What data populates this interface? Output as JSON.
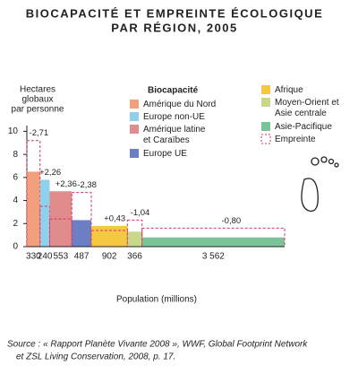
{
  "chart_data": {
    "type": "variable-width-bar",
    "title": [
      "BIOCAPACITÉ ET EMPREINTE ÉCOLOGIQUE",
      "PAR RÉGION, 2005"
    ],
    "y_label": [
      "Hectares",
      "globaux",
      "par personne"
    ],
    "x_label": "Population (millions)",
    "legend_title": "Biocapacité",
    "footprint_name": "Empreinte",
    "footprint_color": "#d6336c",
    "categories": [
      "Amérique du Nord",
      "Europe non-UE",
      "Amérique latine et Caraïbes",
      "Europe UE",
      "Afrique",
      "Moyen-Orient et Asie centrale",
      "Asie-Pacifique"
    ],
    "colors": [
      "#f2a07b",
      "#8fd0ec",
      "#e08c8c",
      "#6c7fc4",
      "#f5c842",
      "#c8d88a",
      "#7bc49a"
    ],
    "population": [
      330,
      240,
      553,
      487,
      902,
      366,
      3562
    ],
    "population_labels": [
      "330",
      "240",
      "553",
      "487",
      "902",
      "366",
      "3 562"
    ],
    "biocapacity": [
      6.5,
      5.8,
      4.8,
      2.3,
      1.8,
      1.3,
      0.8
    ],
    "footprint": [
      9.2,
      3.5,
      2.4,
      4.7,
      1.4,
      2.3,
      1.6
    ],
    "balance": [
      -2.71,
      2.26,
      2.36,
      -2.38,
      0.43,
      -1.04,
      -0.8
    ],
    "balance_labels": [
      "-2,71",
      "+2,26",
      "+2,36",
      "-2,38",
      "+0,43",
      "-1,04",
      "-0,80"
    ],
    "ylim": [
      0,
      10.5
    ],
    "yticks": [
      0,
      2,
      4,
      6,
      8,
      10
    ],
    "source": [
      "Source : « Rapport Planète Vivante 2008 », WWF, Global Footprint Network",
      "et ZSL Living Conservation, 2008, p. 17."
    ]
  }
}
